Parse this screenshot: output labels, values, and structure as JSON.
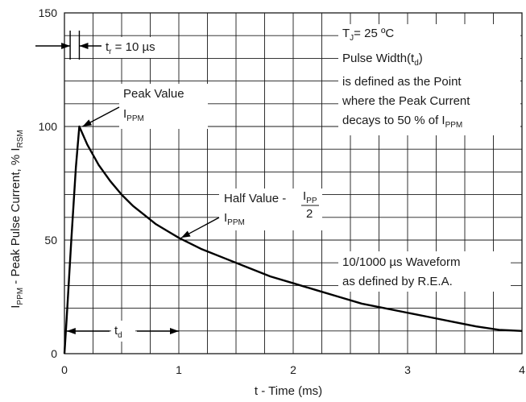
{
  "chart_data": {
    "type": "line",
    "xlabel": "t - Time (ms)",
    "ylabel": {
      "main": "I",
      "sub1": "PPM",
      "mid": " - Peak Pulse Current, % I",
      "sub2": "RSM"
    },
    "xlim": [
      0,
      4
    ],
    "ylim": [
      0,
      150
    ],
    "x_ticks": [
      "0",
      "1",
      "2",
      "3",
      "4"
    ],
    "y_ticks": [
      "0",
      "50",
      "100",
      "150"
    ],
    "grid": true,
    "series": [
      {
        "x": [
          0,
          0.02,
          0.04,
          0.06,
          0.08,
          0.1,
          0.13,
          0.2,
          0.3,
          0.4,
          0.5,
          0.6,
          0.7,
          0.8,
          0.9,
          1.0,
          1.2,
          1.4,
          1.6,
          1.8,
          2.0,
          2.2,
          2.4,
          2.6,
          2.8,
          3.0,
          3.2,
          3.4,
          3.6,
          3.8,
          4.0
        ],
        "y": [
          0,
          16,
          33,
          50,
          66,
          82,
          100,
          92,
          83,
          76,
          70,
          65,
          61,
          57,
          54,
          51,
          46,
          42,
          38,
          34,
          31,
          28,
          25,
          22,
          20,
          18,
          16,
          14,
          12,
          10.5,
          10
        ]
      }
    ],
    "annotations": {
      "tr": {
        "pre": "t",
        "sub": "r",
        "post": " = 10 µs"
      },
      "tj": {
        "pre": "T",
        "sub": "J",
        "post": "= 25 ºC"
      },
      "pw_line1": {
        "pre": "Pulse Width(t",
        "sub": "d",
        "post": ")"
      },
      "pw_line2": "is defined as the Point",
      "pw_line3": "where the Peak Current",
      "pw_line4": {
        "pre": "decays to 50 % of I",
        "sub": "PPM"
      },
      "peak_title": "Peak Value",
      "peak_label": {
        "pre": "I",
        "sub": "PPM"
      },
      "half_title": "Half Value - ",
      "half_frac_num": {
        "pre": "I",
        "sub": "PP"
      },
      "half_frac_den": "2",
      "half_label": {
        "pre": "I",
        "sub": "PPM"
      },
      "wave_line1": "10/1000 µs Waveform",
      "wave_line2": "as defined by R.E.A.",
      "td": {
        "pre": "t",
        "sub": "d"
      }
    }
  }
}
